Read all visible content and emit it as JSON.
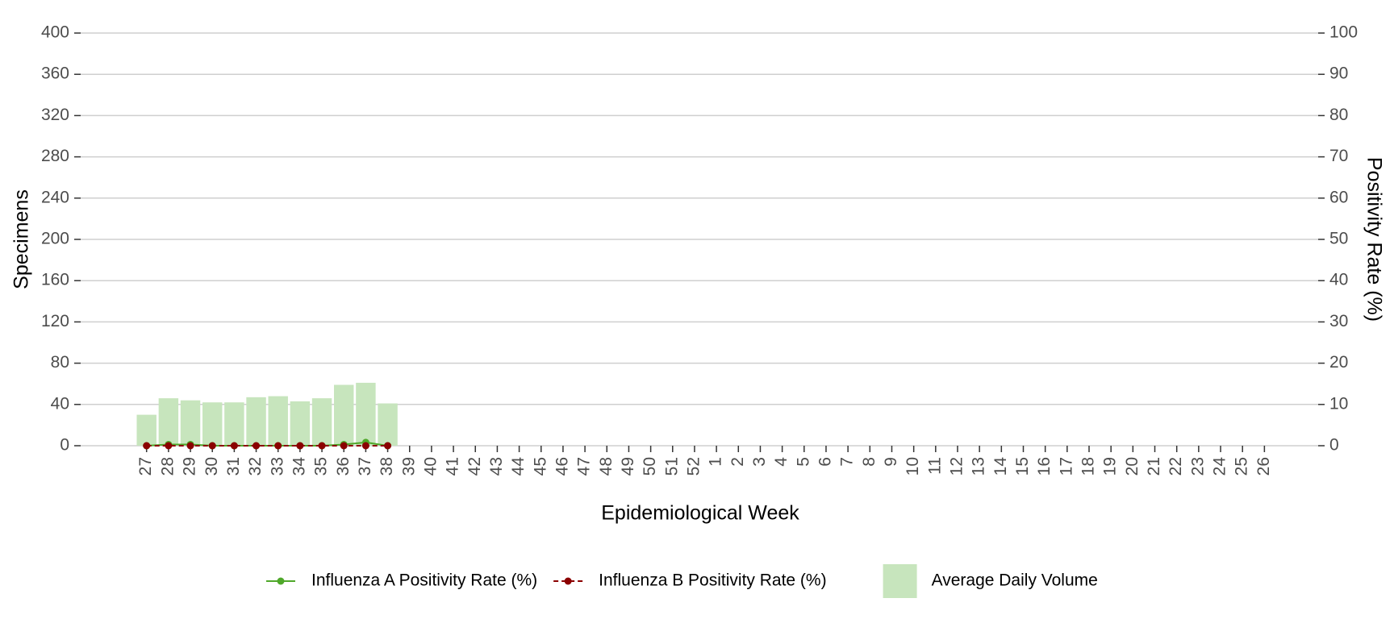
{
  "chart_data": {
    "type": "bar",
    "x_label": "Epidemiological Week",
    "y_label": "Specimens",
    "y2_label": "Positivity Rate (%)",
    "categories": [
      "27",
      "28",
      "29",
      "30",
      "31",
      "32",
      "33",
      "34",
      "35",
      "36",
      "37",
      "38",
      "39",
      "40",
      "41",
      "42",
      "43",
      "44",
      "45",
      "46",
      "47",
      "48",
      "49",
      "50",
      "51",
      "52",
      "1",
      "2",
      "3",
      "4",
      "5",
      "6",
      "7",
      "8",
      "9",
      "10",
      "11",
      "12",
      "13",
      "14",
      "15",
      "16",
      "17",
      "18",
      "19",
      "20",
      "21",
      "22",
      "23",
      "24",
      "25",
      "26"
    ],
    "ylim": [
      0,
      400
    ],
    "yticks": [
      0,
      40,
      80,
      120,
      160,
      200,
      240,
      280,
      320,
      360,
      400
    ],
    "y2lim": [
      0,
      100
    ],
    "y2ticks": [
      0,
      10,
      20,
      30,
      40,
      50,
      60,
      70,
      80,
      90,
      100
    ],
    "grid": true,
    "legend": "bottom",
    "series": [
      {
        "name": "Influenza A Positivity Rate (%)",
        "type": "line",
        "axis": "y2",
        "color": "#4fa82a",
        "dashed": false,
        "values": [
          0,
          0.3,
          0.3,
          0,
          0,
          0,
          0,
          0,
          0,
          0.3,
          0.8,
          0,
          null,
          null,
          null,
          null,
          null,
          null,
          null,
          null,
          null,
          null,
          null,
          null,
          null,
          null,
          null,
          null,
          null,
          null,
          null,
          null,
          null,
          null,
          null,
          null,
          null,
          null,
          null,
          null,
          null,
          null,
          null,
          null,
          null,
          null,
          null,
          null,
          null,
          null,
          null,
          null
        ]
      },
      {
        "name": "Influenza B Positivity Rate (%)",
        "type": "line",
        "axis": "y2",
        "color": "#8b0000",
        "dashed": true,
        "values": [
          0,
          0,
          0,
          0,
          0,
          0,
          0,
          0,
          0,
          0,
          0,
          0,
          null,
          null,
          null,
          null,
          null,
          null,
          null,
          null,
          null,
          null,
          null,
          null,
          null,
          null,
          null,
          null,
          null,
          null,
          null,
          null,
          null,
          null,
          null,
          null,
          null,
          null,
          null,
          null,
          null,
          null,
          null,
          null,
          null,
          null,
          null,
          null,
          null,
          null,
          null,
          null
        ]
      },
      {
        "name": "Average Daily Volume",
        "type": "bar",
        "axis": "y",
        "color": "#c7e5bd",
        "values": [
          30,
          46,
          44,
          42,
          42,
          47,
          48,
          43,
          46,
          59,
          61,
          41,
          null,
          null,
          null,
          null,
          null,
          null,
          null,
          null,
          null,
          null,
          null,
          null,
          null,
          null,
          null,
          null,
          null,
          null,
          null,
          null,
          null,
          null,
          null,
          null,
          null,
          null,
          null,
          null,
          null,
          null,
          null,
          null,
          null,
          null,
          null,
          null,
          null,
          null,
          null,
          null
        ]
      }
    ]
  }
}
